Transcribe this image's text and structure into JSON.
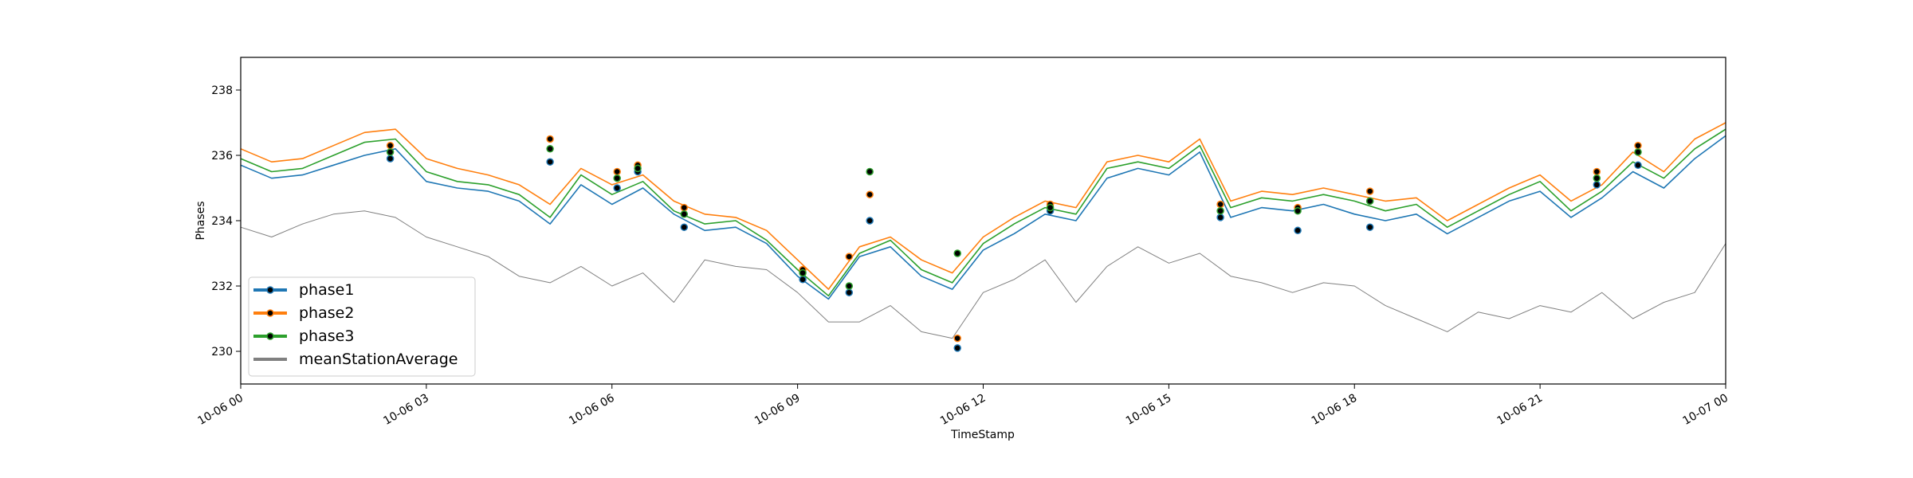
{
  "colors": {
    "phase1": "#1f77b4",
    "phase2": "#ff7f0e",
    "phase3": "#2ca02c",
    "meanStationAverage": "#808080",
    "marker_fill": "#000000"
  },
  "chart_data": {
    "type": "line",
    "title": "",
    "xlabel": "TimeStamp",
    "ylabel": "Phases",
    "x_axis_type": "datetime",
    "xlim": [
      "2019-10-06 00:00",
      "2019-10-07 00:00"
    ],
    "ylim": [
      229.0,
      239.0
    ],
    "x_ticks": [
      {
        "value": "10-06 00:00",
        "label": "10-06 00"
      },
      {
        "value": "10-06 03:00",
        "label": "10-06 03"
      },
      {
        "value": "10-06 06:00",
        "label": "10-06 06"
      },
      {
        "value": "10-06 09:00",
        "label": "10-06 09"
      },
      {
        "value": "10-06 12:00",
        "label": "10-06 12"
      },
      {
        "value": "10-06 15:00",
        "label": "10-06 15"
      },
      {
        "value": "10-06 18:00",
        "label": "10-06 18"
      },
      {
        "value": "10-06 21:00",
        "label": "10-06 21"
      },
      {
        "value": "10-07 00:00",
        "label": "10-07 00"
      }
    ],
    "y_ticks": [
      230,
      232,
      234,
      236,
      238
    ],
    "grid": false,
    "legend": {
      "position": "lower-left",
      "entries": [
        "phase1",
        "phase2",
        "phase3",
        "meanStationAverage"
      ]
    },
    "series": [
      {
        "name": "phase1",
        "x": [
          "10-06 00:00",
          "10-06 00:30",
          "10-06 01:00",
          "10-06 01:30",
          "10-06 02:00",
          "10-06 02:30",
          "10-06 03:00",
          "10-06 03:30",
          "10-06 04:00",
          "10-06 04:30",
          "10-06 05:00",
          "10-06 05:30",
          "10-06 06:00",
          "10-06 06:30",
          "10-06 07:00",
          "10-06 07:30",
          "10-06 08:00",
          "10-06 08:30",
          "10-06 09:00",
          "10-06 09:30",
          "10-06 10:00",
          "10-06 10:30",
          "10-06 11:00",
          "10-06 11:30",
          "10-06 12:00",
          "10-06 12:30",
          "10-06 13:00",
          "10-06 13:30",
          "10-06 14:00",
          "10-06 14:30",
          "10-06 15:00",
          "10-06 15:30",
          "10-06 16:00",
          "10-06 16:30",
          "10-06 17:00",
          "10-06 17:30",
          "10-06 18:00",
          "10-06 18:30",
          "10-06 19:00",
          "10-06 19:30",
          "10-06 20:00",
          "10-06 20:30",
          "10-06 21:00",
          "10-06 21:30",
          "10-06 22:00",
          "10-06 22:30",
          "10-06 23:00",
          "10-06 23:30",
          "10-07 00:00"
        ],
        "values": [
          235.7,
          235.3,
          235.4,
          235.7,
          236.0,
          236.2,
          235.2,
          235.0,
          234.9,
          234.6,
          233.9,
          235.1,
          234.5,
          235.0,
          234.2,
          233.7,
          233.8,
          233.3,
          232.3,
          231.6,
          232.9,
          233.2,
          232.3,
          231.9,
          233.1,
          233.6,
          234.2,
          234.0,
          235.3,
          235.6,
          235.4,
          236.1,
          234.1,
          234.4,
          234.3,
          234.5,
          234.2,
          234.0,
          234.2,
          233.6,
          234.1,
          234.6,
          234.9,
          234.1,
          234.7,
          235.5,
          235.0,
          235.9,
          236.6
        ]
      },
      {
        "name": "phase2",
        "x": [
          "10-06 00:00",
          "10-06 00:30",
          "10-06 01:00",
          "10-06 01:30",
          "10-06 02:00",
          "10-06 02:30",
          "10-06 03:00",
          "10-06 03:30",
          "10-06 04:00",
          "10-06 04:30",
          "10-06 05:00",
          "10-06 05:30",
          "10-06 06:00",
          "10-06 06:30",
          "10-06 07:00",
          "10-06 07:30",
          "10-06 08:00",
          "10-06 08:30",
          "10-06 09:00",
          "10-06 09:30",
          "10-06 10:00",
          "10-06 10:30",
          "10-06 11:00",
          "10-06 11:30",
          "10-06 12:00",
          "10-06 12:30",
          "10-06 13:00",
          "10-06 13:30",
          "10-06 14:00",
          "10-06 14:30",
          "10-06 15:00",
          "10-06 15:30",
          "10-06 16:00",
          "10-06 16:30",
          "10-06 17:00",
          "10-06 17:30",
          "10-06 18:00",
          "10-06 18:30",
          "10-06 19:00",
          "10-06 19:30",
          "10-06 20:00",
          "10-06 20:30",
          "10-06 21:00",
          "10-06 21:30",
          "10-06 22:00",
          "10-06 22:30",
          "10-06 23:00",
          "10-06 23:30",
          "10-07 00:00"
        ],
        "values": [
          236.2,
          235.8,
          235.9,
          236.3,
          236.7,
          236.8,
          235.9,
          235.6,
          235.4,
          235.1,
          234.5,
          235.6,
          235.1,
          235.4,
          234.6,
          234.2,
          234.1,
          233.7,
          232.8,
          231.9,
          233.2,
          233.5,
          232.8,
          232.4,
          233.5,
          234.1,
          234.6,
          234.4,
          235.8,
          236.0,
          235.8,
          236.5,
          234.6,
          234.9,
          234.8,
          235.0,
          234.8,
          234.6,
          234.7,
          234.0,
          234.5,
          235.0,
          235.4,
          234.6,
          235.1,
          236.1,
          235.5,
          236.5,
          237.0
        ]
      },
      {
        "name": "phase3",
        "x": [
          "10-06 00:00",
          "10-06 00:30",
          "10-06 01:00",
          "10-06 01:30",
          "10-06 02:00",
          "10-06 02:30",
          "10-06 03:00",
          "10-06 03:30",
          "10-06 04:00",
          "10-06 04:30",
          "10-06 05:00",
          "10-06 05:30",
          "10-06 06:00",
          "10-06 06:30",
          "10-06 07:00",
          "10-06 07:30",
          "10-06 08:00",
          "10-06 08:30",
          "10-06 09:00",
          "10-06 09:30",
          "10-06 10:00",
          "10-06 10:30",
          "10-06 11:00",
          "10-06 11:30",
          "10-06 12:00",
          "10-06 12:30",
          "10-06 13:00",
          "10-06 13:30",
          "10-06 14:00",
          "10-06 14:30",
          "10-06 15:00",
          "10-06 15:30",
          "10-06 16:00",
          "10-06 16:30",
          "10-06 17:00",
          "10-06 17:30",
          "10-06 18:00",
          "10-06 18:30",
          "10-06 19:00",
          "10-06 19:30",
          "10-06 20:00",
          "10-06 20:30",
          "10-06 21:00",
          "10-06 21:30",
          "10-06 22:00",
          "10-06 22:30",
          "10-06 23:00",
          "10-06 23:30",
          "10-07 00:00"
        ],
        "values": [
          235.9,
          235.5,
          235.6,
          236.0,
          236.4,
          236.5,
          235.5,
          235.2,
          235.1,
          234.8,
          234.1,
          235.4,
          234.8,
          235.2,
          234.3,
          233.9,
          234.0,
          233.4,
          232.5,
          231.7,
          233.0,
          233.4,
          232.5,
          232.1,
          233.3,
          233.9,
          234.4,
          234.2,
          235.6,
          235.8,
          235.6,
          236.3,
          234.4,
          234.7,
          234.6,
          234.8,
          234.6,
          234.3,
          234.5,
          233.8,
          234.3,
          234.8,
          235.2,
          234.3,
          234.9,
          235.8,
          235.3,
          236.2,
          236.8
        ]
      },
      {
        "name": "meanStationAverage",
        "x": [
          "10-06 00:00",
          "10-06 00:30",
          "10-06 01:00",
          "10-06 01:30",
          "10-06 02:00",
          "10-06 02:30",
          "10-06 03:00",
          "10-06 03:30",
          "10-06 04:00",
          "10-06 04:30",
          "10-06 05:00",
          "10-06 05:30",
          "10-06 06:00",
          "10-06 06:30",
          "10-06 07:00",
          "10-06 07:30",
          "10-06 08:00",
          "10-06 08:30",
          "10-06 09:00",
          "10-06 09:30",
          "10-06 10:00",
          "10-06 10:30",
          "10-06 11:00",
          "10-06 11:30",
          "10-06 12:00",
          "10-06 12:30",
          "10-06 13:00",
          "10-06 13:30",
          "10-06 14:00",
          "10-06 14:30",
          "10-06 15:00",
          "10-06 15:30",
          "10-06 16:00",
          "10-06 16:30",
          "10-06 17:00",
          "10-06 17:30",
          "10-06 18:00",
          "10-06 18:30",
          "10-06 19:00",
          "10-06 19:30",
          "10-06 20:00",
          "10-06 20:30",
          "10-06 21:00",
          "10-06 21:30",
          "10-06 22:00",
          "10-06 22:30",
          "10-06 23:00",
          "10-06 23:30",
          "10-07 00:00"
        ],
        "values": [
          233.8,
          233.5,
          233.9,
          234.2,
          234.3,
          234.1,
          233.5,
          233.2,
          232.9,
          232.3,
          232.1,
          232.6,
          232.0,
          232.4,
          231.5,
          232.8,
          232.6,
          232.5,
          231.8,
          230.9,
          230.9,
          231.4,
          230.6,
          230.4,
          231.8,
          232.2,
          232.8,
          231.5,
          232.6,
          233.2,
          232.7,
          233.0,
          232.3,
          232.1,
          231.8,
          232.1,
          232.0,
          231.4,
          231.0,
          230.6,
          231.2,
          231.0,
          231.4,
          231.2,
          231.8,
          231.0,
          231.5,
          231.8,
          233.3
        ]
      }
    ],
    "markers": [
      {
        "x": "10-06 02:25",
        "phase1": 235.9,
        "phase2": 236.3,
        "phase3": 236.1
      },
      {
        "x": "10-06 05:00",
        "phase1": 235.8,
        "phase2": 236.5,
        "phase3": 236.2
      },
      {
        "x": "10-06 06:05",
        "phase1": 235.0,
        "phase2": 235.5,
        "phase3": 235.3
      },
      {
        "x": "10-06 06:25",
        "phase1": 235.5,
        "phase2": 235.7,
        "phase3": 235.6
      },
      {
        "x": "10-06 07:10",
        "phase1": 233.8,
        "phase2": 234.4,
        "phase3": 234.2
      },
      {
        "x": "10-06 09:05",
        "phase1": 232.2,
        "phase2": 232.5,
        "phase3": 232.4
      },
      {
        "x": "10-06 09:50",
        "phase1": 231.8,
        "phase2": 232.9,
        "phase3": 232.0
      },
      {
        "x": "10-06 10:10",
        "phase1": 234.0,
        "phase2": 234.8,
        "phase3": 235.5
      },
      {
        "x": "10-06 11:35",
        "phase1": 230.1,
        "phase2": 230.4,
        "phase3": 233.0
      },
      {
        "x": "10-06 13:05",
        "phase1": 234.3,
        "phase2": 234.5,
        "phase3": 234.4
      },
      {
        "x": "10-06 15:50",
        "phase1": 234.1,
        "phase2": 234.5,
        "phase3": 234.3
      },
      {
        "x": "10-06 17:05",
        "phase1": 233.7,
        "phase2": 234.4,
        "phase3": 234.3
      },
      {
        "x": "10-06 18:15",
        "phase1": 233.8,
        "phase2": 234.9,
        "phase3": 234.6
      },
      {
        "x": "10-06 21:55",
        "phase1": 235.1,
        "phase2": 235.5,
        "phase3": 235.3
      },
      {
        "x": "10-06 22:35",
        "phase1": 235.7,
        "phase2": 236.3,
        "phase3": 236.1
      }
    ]
  }
}
